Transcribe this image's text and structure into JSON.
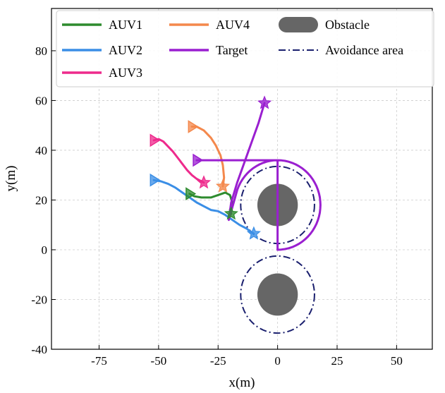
{
  "chart_data": {
    "type": "line",
    "title": "",
    "xlabel": "x(m)",
    "ylabel": "y(m)",
    "xlim": [
      -95,
      65
    ],
    "ylim": [
      -40,
      97
    ],
    "xticks": [
      -75,
      -50,
      -25,
      0,
      25,
      50
    ],
    "yticks": [
      -40,
      -20,
      0,
      20,
      40,
      60,
      80
    ],
    "grid": true,
    "legend_position": "top",
    "series": [
      {
        "name": "AUV1",
        "color": "#2e8b2e",
        "x": [
          -37,
          -35,
          -32,
          -28,
          -25,
          -22,
          -20,
          -19,
          -20,
          -19.5
        ],
        "y": [
          22.5,
          21.5,
          21,
          21,
          22,
          23,
          22,
          19,
          16,
          14.5
        ],
        "start_marker": "triangle-right",
        "end_marker": "star"
      },
      {
        "name": "AUV2",
        "color": "#3a8ee6",
        "x": [
          -52,
          -49,
          -46,
          -43,
          -40,
          -37,
          -34,
          -31,
          -28,
          -25,
          -22,
          -19,
          -16,
          -13,
          -11,
          -10
        ],
        "y": [
          28,
          27.5,
          26.5,
          25,
          23,
          21,
          19,
          17.5,
          16,
          15.5,
          14,
          12,
          10,
          8.5,
          7,
          6.5
        ],
        "start_marker": "triangle-right",
        "end_marker": "star"
      },
      {
        "name": "AUV3",
        "color": "#ee2a8c",
        "x": [
          -52,
          -50,
          -48,
          -46,
          -44,
          -42,
          -40,
          -38,
          -36,
          -34,
          -32,
          -31
        ],
        "y": [
          44,
          44.5,
          43.5,
          41.5,
          39.5,
          37,
          34.5,
          32,
          30,
          28.5,
          27.5,
          27
        ],
        "start_marker": "triangle-right",
        "end_marker": "star"
      },
      {
        "name": "AUV4",
        "color": "#f4884c",
        "x": [
          -36,
          -34,
          -31,
          -28,
          -26,
          -24,
          -23,
          -22.5,
          -23
        ],
        "y": [
          49.5,
          49.5,
          48,
          45,
          42,
          38,
          34,
          29,
          25.5
        ],
        "start_marker": "triangle-right",
        "end_marker": "star"
      },
      {
        "name": "Target",
        "color": "#9a1fd0",
        "x": [
          -5.5,
          -8,
          -11,
          -14,
          -17,
          -19.5,
          -20.5
        ],
        "y": [
          59,
          51,
          43,
          35,
          27,
          19,
          12
        ],
        "start_marker": "star",
        "end_marker": "none"
      }
    ],
    "target_loop": {
      "straight_from_x": -34,
      "straight_y": 36,
      "center": [
        0,
        18
      ],
      "radius": 18
    },
    "obstacles": [
      {
        "name": "Obstacle",
        "center": [
          0,
          18
        ],
        "radius": 8.5,
        "color": "#666666"
      },
      {
        "name": "Obstacle",
        "center": [
          0,
          -18
        ],
        "radius": 8.5,
        "color": "#666666"
      }
    ],
    "avoidance_areas": [
      {
        "name": "Avoidance area",
        "center": [
          0,
          18
        ],
        "radius": 15.5,
        "color": "#1a1f6e"
      },
      {
        "name": "Avoidance area",
        "center": [
          0,
          -18
        ],
        "radius": 15.5,
        "color": "#1a1f6e"
      }
    ],
    "legend": [
      {
        "label": "AUV1",
        "kind": "line",
        "color": "#2e8b2e"
      },
      {
        "label": "AUV2",
        "kind": "line",
        "color": "#3a8ee6"
      },
      {
        "label": "AUV3",
        "kind": "line",
        "color": "#ee2a8c"
      },
      {
        "label": "AUV4",
        "kind": "line",
        "color": "#f4884c"
      },
      {
        "label": "Target",
        "kind": "line",
        "color": "#9a1fd0"
      },
      {
        "label": "Obstacle",
        "kind": "circle",
        "color": "#666666"
      },
      {
        "label": "Avoidance area",
        "kind": "dashdot",
        "color": "#1a1f6e"
      }
    ]
  }
}
